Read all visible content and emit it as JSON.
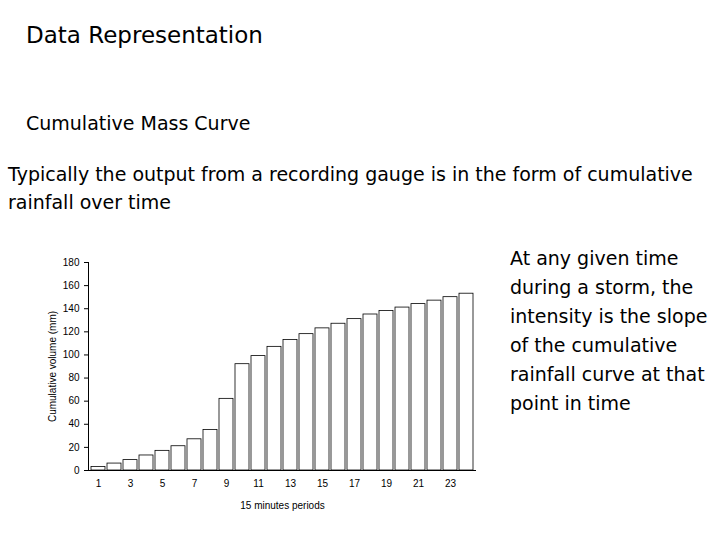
{
  "slide": {
    "heading": "Data Representation",
    "subheading": "Cumulative Mass Curve",
    "text": "Typically the output from a recording gauge is in the form of cumulative rainfall over time",
    "note": "At any given time during a storm, the intensity is the slope of the cumulative rainfall curve at that point in time"
  },
  "chart_data": {
    "type": "bar",
    "categories": [
      "1",
      null,
      "3",
      null,
      "5",
      null,
      "7",
      null,
      "9",
      null,
      "11",
      null,
      "13",
      null,
      "15",
      null,
      "17",
      null,
      "19",
      null,
      "21",
      null,
      "23",
      null
    ],
    "values": [
      3,
      6,
      9,
      13,
      17,
      21,
      27,
      35,
      62,
      92,
      99,
      107,
      113,
      118,
      123,
      127,
      131,
      135,
      138,
      141,
      144,
      147,
      150,
      153
    ],
    "x_label": "15 minutes periods",
    "y_label": "Cumulative volume (mm)",
    "color": "#ffffff",
    "ylim": [
      0,
      180
    ],
    "yticks": [
      0,
      20,
      40,
      60,
      80,
      100,
      120,
      140,
      160,
      180
    ],
    "grid": false
  }
}
